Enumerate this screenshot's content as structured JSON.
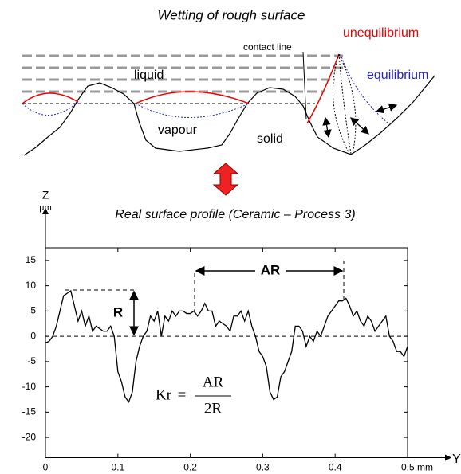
{
  "diagram": {
    "title": "Wetting of rough surface",
    "labels": {
      "contact_line": "contact line",
      "unequilibrium": "unequilibrium",
      "equilibrium": "equilibrium",
      "liquid": "liquid",
      "vapour": "vapour",
      "solid": "solid"
    }
  },
  "chart_data": {
    "type": "line",
    "title": "Real surface profile (Ceramic – Process 3)",
    "y_label": "Z",
    "y_unit": "µm",
    "x_label": "Y",
    "x": [
      0,
      0.005,
      0.01,
      0.015,
      0.02,
      0.025,
      0.03,
      0.035,
      0.04,
      0.045,
      0.05,
      0.055,
      0.06,
      0.065,
      0.07,
      0.075,
      0.08,
      0.085,
      0.09,
      0.095,
      0.1,
      0.105,
      0.11,
      0.115,
      0.12,
      0.125,
      0.13,
      0.135,
      0.14,
      0.145,
      0.15,
      0.155,
      0.16,
      0.165,
      0.17,
      0.175,
      0.18,
      0.185,
      0.19,
      0.195,
      0.2,
      0.205,
      0.21,
      0.215,
      0.22,
      0.225,
      0.23,
      0.235,
      0.24,
      0.245,
      0.25,
      0.255,
      0.26,
      0.265,
      0.27,
      0.275,
      0.28,
      0.285,
      0.29,
      0.295,
      0.3,
      0.305,
      0.31,
      0.315,
      0.32,
      0.325,
      0.33,
      0.335,
      0.34,
      0.345,
      0.35,
      0.355,
      0.36,
      0.365,
      0.37,
      0.375,
      0.38,
      0.385,
      0.39,
      0.395,
      0.4,
      0.405,
      0.41,
      0.415,
      0.42,
      0.425,
      0.43,
      0.435,
      0.44,
      0.445,
      0.45,
      0.455,
      0.46,
      0.465,
      0.47,
      0.475,
      0.48,
      0.485,
      0.49,
      0.495,
      0.5
    ],
    "series": [
      {
        "color": "#000000",
        "values": [
          -1.3,
          -1,
          0,
          2,
          5,
          8,
          8.5,
          9,
          6,
          3,
          5,
          2,
          4,
          1,
          2,
          1.5,
          1,
          1,
          2,
          0,
          -7,
          -9,
          -12,
          -13,
          -11,
          -5,
          -2,
          0,
          1,
          4,
          3,
          5,
          0,
          4,
          3,
          5,
          4,
          5,
          5,
          4.5,
          4.5,
          5,
          4,
          5,
          6.5,
          5,
          5,
          2,
          3,
          2.5,
          2,
          1,
          4,
          4,
          5,
          3,
          5,
          2,
          0,
          -3,
          -4,
          -6,
          -11,
          -12.5,
          -12,
          -8,
          -7,
          -5,
          -3,
          2,
          2,
          1,
          -2,
          0,
          -1,
          1,
          0,
          2,
          4,
          5,
          6,
          7,
          7,
          7.5,
          6,
          4,
          5,
          3,
          2,
          4,
          3,
          1,
          2,
          3,
          4,
          0,
          -1,
          -3,
          -3,
          -4,
          -2
        ]
      }
    ],
    "xlim": [
      0,
      0.5
    ],
    "ylim": [
      -24,
      17.5
    ],
    "xticks": [
      0,
      0.1,
      0.2,
      0.3,
      0.4,
      {
        "value": 0.5,
        "label": "0.5 mm"
      }
    ],
    "yticks": [
      -20,
      -15,
      -10,
      -5,
      0,
      5,
      10,
      15
    ],
    "annotations": {
      "ar": "AR",
      "r": "R"
    },
    "formula": {
      "lhs": "Kr",
      "operator": "=",
      "numerator": "AR",
      "denominator": "2R"
    }
  }
}
